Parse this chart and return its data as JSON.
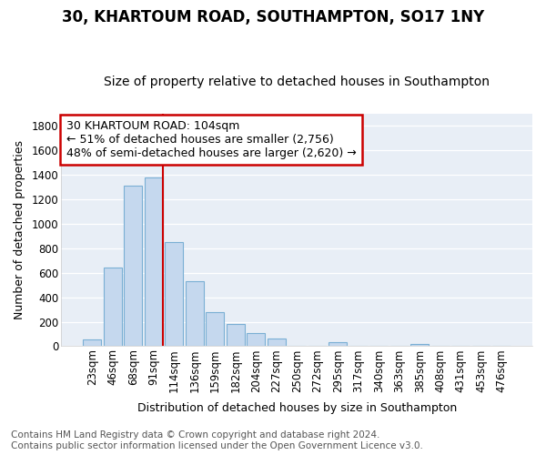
{
  "title": "30, KHARTOUM ROAD, SOUTHAMPTON, SO17 1NY",
  "subtitle": "Size of property relative to detached houses in Southampton",
  "xlabel": "Distribution of detached houses by size in Southampton",
  "ylabel": "Number of detached properties",
  "categories": [
    "23sqm",
    "46sqm",
    "68sqm",
    "91sqm",
    "114sqm",
    "136sqm",
    "159sqm",
    "182sqm",
    "204sqm",
    "227sqm",
    "250sqm",
    "272sqm",
    "295sqm",
    "317sqm",
    "340sqm",
    "363sqm",
    "385sqm",
    "408sqm",
    "431sqm",
    "453sqm",
    "476sqm"
  ],
  "values": [
    55,
    645,
    1310,
    1380,
    850,
    530,
    280,
    185,
    105,
    65,
    0,
    0,
    30,
    0,
    0,
    0,
    15,
    0,
    0,
    0,
    0
  ],
  "bar_color": "#c5d8ee",
  "bar_edge_color": "#7aafd4",
  "highlight_index": 3,
  "highlight_line_color": "#cc0000",
  "ylim": [
    0,
    1900
  ],
  "yticks": [
    0,
    200,
    400,
    600,
    800,
    1000,
    1200,
    1400,
    1600,
    1800
  ],
  "annotation_text_line1": "30 KHARTOUM ROAD: 104sqm",
  "annotation_text_line2": "← 51% of detached houses are smaller (2,756)",
  "annotation_text_line3": "48% of semi-detached houses are larger (2,620) →",
  "annotation_box_color": "#ffffff",
  "annotation_border_color": "#cc0000",
  "footer_line1": "Contains HM Land Registry data © Crown copyright and database right 2024.",
  "footer_line2": "Contains public sector information licensed under the Open Government Licence v3.0.",
  "fig_bg_color": "#ffffff",
  "plot_bg_color": "#e8eef6",
  "grid_color": "#ffffff",
  "title_fontsize": 12,
  "subtitle_fontsize": 10,
  "axis_label_fontsize": 9,
  "tick_fontsize": 8.5,
  "annotation_fontsize": 9,
  "footer_fontsize": 7.5
}
